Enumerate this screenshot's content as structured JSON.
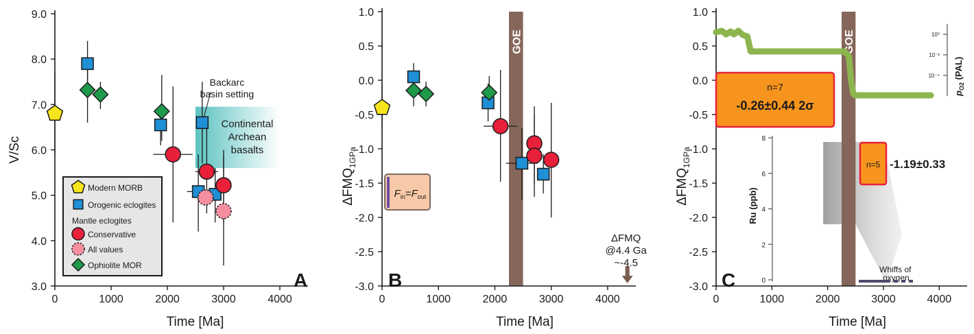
{
  "colors": {
    "morb": "#f6e41c",
    "orogenic": "#1f8fd6",
    "conservative": "#e8203a",
    "all_values": "#f58fa0",
    "ophiolite": "#1f9a4b",
    "goe": "#86665a",
    "flux_box": "#f8c9a8",
    "flux_bar": "#6a4fa0",
    "orange_box": "#f7941d",
    "red_border": "#e8203a",
    "oxygen_curve": "#8db54f",
    "gray_band": "#a8a8a8",
    "teal": "#58c5c3",
    "dark_arrow": "#7a5c50",
    "whiffs_bar": "#4a4a6a"
  },
  "chart_data": [
    {
      "panel_label": "A",
      "type": "scatter",
      "xlabel": "Time [Ma]",
      "ylabel": "V/Sc",
      "xlim": [
        0,
        4500
      ],
      "ylim": [
        3.0,
        9.0
      ],
      "xticks": [
        "0",
        "1000",
        "2000",
        "3000",
        "4000"
      ],
      "yticks": [
        "3.0",
        "4.0",
        "5.0",
        "6.0",
        "7.0",
        "8.0",
        "9.0"
      ],
      "series": [
        {
          "name": "Modern MORB",
          "marker": "pentagon",
          "points": [
            {
              "x": 0,
              "y": 6.8,
              "ylo": 5.9,
              "yhi": 7.7
            }
          ]
        },
        {
          "name": "Orogenic eclogites",
          "marker": "square",
          "points": [
            {
              "x": 580,
              "y": 7.9,
              "ylo": 7.3,
              "yhi": 8.4
            },
            {
              "x": 1880,
              "y": 6.55,
              "ylo": 6.1,
              "yhi": 7.0
            },
            {
              "x": 2620,
              "y": 6.6,
              "ylo": 5.7,
              "yhi": 7.5
            },
            {
              "x": 2550,
              "y": 5.08,
              "ylo": 4.2,
              "yhi": 5.9,
              "xlo": 2350,
              "xhi": 2750
            },
            {
              "x": 2850,
              "y": 5.02,
              "ylo": 4.4,
              "yhi": 5.6
            }
          ]
        },
        {
          "name": "Conservative",
          "marker": "circle",
          "points": [
            {
              "x": 2100,
              "y": 5.9,
              "ylo": 4.4,
              "yhi": 7.4,
              "xlo": 1750,
              "xhi": 2450
            },
            {
              "x": 2700,
              "y": 5.52,
              "ylo": 4.6,
              "yhi": 6.5,
              "xlo": 2500,
              "xhi": 2900
            },
            {
              "x": 3000,
              "y": 5.22,
              "ylo": 4.4,
              "yhi": 6.0
            }
          ]
        },
        {
          "name": "All values",
          "marker": "circle-dashed",
          "points": [
            {
              "x": 2680,
              "y": 4.95
            },
            {
              "x": 3000,
              "y": 4.65,
              "ylo": 3.45,
              "yhi": 5.85
            }
          ]
        },
        {
          "name": "Ophiolite MOR",
          "marker": "diamond",
          "points": [
            {
              "x": 580,
              "y": 7.32,
              "ylo": 6.6,
              "yhi": 8.0
            },
            {
              "x": 810,
              "y": 7.22,
              "ylo": 6.9,
              "yhi": 7.5
            },
            {
              "x": 1900,
              "y": 6.85,
              "ylo": 6.2,
              "yhi": 7.65
            }
          ]
        }
      ],
      "shaded_region": {
        "x": [
          2500,
          4000
        ],
        "y": [
          5.6,
          6.95
        ],
        "label_lines": [
          "Continental",
          "Archean",
          "basalts"
        ]
      },
      "annotation": {
        "lines": [
          "Backarc",
          "basin setting"
        ]
      },
      "legend": {
        "position": "bottom-left",
        "items": [
          {
            "label": "Modern MORB",
            "marker": "pentagon"
          },
          {
            "label": "Orogenic eclogites",
            "marker": "square"
          },
          {
            "label": "Mantle eclogites",
            "marker": "none"
          },
          {
            "label": "Conservative",
            "marker": "circle"
          },
          {
            "label": "All values",
            "marker": "circle-dashed"
          },
          {
            "label": "Ophiolite MOR",
            "marker": "diamond"
          }
        ]
      }
    },
    {
      "panel_label": "B",
      "type": "scatter",
      "xlabel": "Time [Ma]",
      "ylabel_main": "ΔFMQ",
      "ylabel_sub": "1GPa",
      "xlim": [
        0,
        4500
      ],
      "ylim": [
        -3.0,
        1.0
      ],
      "xticks": [
        "0",
        "1000",
        "2000",
        "3000",
        "4000"
      ],
      "yticks": [
        "-3.0",
        "-2.5",
        "-2.0",
        "-1.5",
        "-1.0",
        "-0.5",
        "0.0",
        "0.5",
        "1.0"
      ],
      "goe": {
        "x": [
          2250,
          2500
        ],
        "label": "GOE"
      },
      "series": [
        {
          "name": "Modern MORB",
          "marker": "pentagon",
          "points": [
            {
              "x": 0,
              "y": -0.4,
              "ylo": -0.72,
              "yhi": -0.08
            }
          ]
        },
        {
          "name": "Orogenic eclogites",
          "marker": "square",
          "points": [
            {
              "x": 560,
              "y": 0.05,
              "ylo": -0.15,
              "yhi": 0.25
            },
            {
              "x": 1880,
              "y": -0.33,
              "ylo": -0.6,
              "yhi": -0.05
            },
            {
              "x": 2480,
              "y": -1.21,
              "ylo": -1.75,
              "yhi": -0.7,
              "xlo": 2200,
              "xhi": 2760
            },
            {
              "x": 2860,
              "y": -1.37,
              "ylo": -1.65,
              "yhi": -1.08
            }
          ]
        },
        {
          "name": "Conservative",
          "marker": "circle",
          "points": [
            {
              "x": 2100,
              "y": -0.67,
              "ylo": -1.48,
              "yhi": 0.15,
              "xlo": 1800,
              "xhi": 2400
            },
            {
              "x": 2700,
              "y": -0.92,
              "ylo": -1.5,
              "yhi": -0.38
            },
            {
              "x": 2700,
              "y": -1.1,
              "ylo": -1.7,
              "yhi": -0.5
            },
            {
              "x": 3000,
              "y": -1.16,
              "ylo": -2.0,
              "yhi": -0.33
            }
          ]
        },
        {
          "name": "Ophiolite MOR",
          "marker": "diamond",
          "points": [
            {
              "x": 560,
              "y": -0.15,
              "ylo": -0.38,
              "yhi": 0.08
            },
            {
              "x": 780,
              "y": -0.2,
              "ylo": -0.38,
              "yhi": -0.02
            },
            {
              "x": 1900,
              "y": -0.18,
              "ylo": -0.42,
              "yhi": 0.06
            }
          ]
        }
      ],
      "flux_box": {
        "label_main_1": "F",
        "label_sub_1": "in",
        "label_eq": "=",
        "label_main_2": "F",
        "label_sub_2": "out"
      },
      "arrow_annotation": {
        "x": 4350,
        "lines": [
          "ΔFMQ",
          "@4.4 Ga",
          "~-4.5"
        ]
      }
    },
    {
      "panel_label": "C",
      "type": "line",
      "xlabel": "Time [Ma]",
      "ylabel_main": "ΔFMQ",
      "ylabel_sub": "1GPa",
      "xlim": [
        0,
        4500
      ],
      "ylim": [
        -3.0,
        1.0
      ],
      "xticks": [
        "0",
        "1000",
        "2000",
        "3000",
        "4000"
      ],
      "yticks": [
        "-3.0",
        "-2.5",
        "-2.0",
        "-1.5",
        "-1.0",
        "-0.5",
        "0.0",
        "0.5",
        "1.0"
      ],
      "goe": {
        "x": [
          2250,
          2500
        ],
        "label": "GOE"
      },
      "oxygen_curve": {
        "x": [
          0,
          100,
          180,
          260,
          320,
          400,
          480,
          560,
          620,
          700,
          1500,
          2300,
          2380,
          2420,
          2460,
          2500,
          3000,
          3850
        ],
        "y": [
          0.7,
          0.72,
          0.67,
          0.71,
          0.67,
          0.72,
          0.66,
          0.64,
          0.42,
          0.42,
          0.42,
          0.42,
          0.35,
          0.0,
          -0.2,
          -0.22,
          -0.22,
          -0.22
        ]
      },
      "right_axis": {
        "label_main": "p",
        "label_sub": "O2",
        "label_unit": " (PAL)",
        "ticks": [
          "10⁰",
          "10⁻²",
          "10⁻⁴"
        ]
      },
      "box1": {
        "line1": "n=7",
        "line2": "-0.26±0.44 2σ"
      },
      "box2": {
        "line1": "n=5",
        "side_label": "-1.19±0.33"
      },
      "inset_axis": {
        "label": "Ru (ppb)",
        "ticks": [
          "0",
          "2",
          "4",
          "6",
          "8"
        ]
      },
      "whiffs": {
        "lines": [
          "Whiffs of",
          "oxygen"
        ]
      }
    }
  ]
}
